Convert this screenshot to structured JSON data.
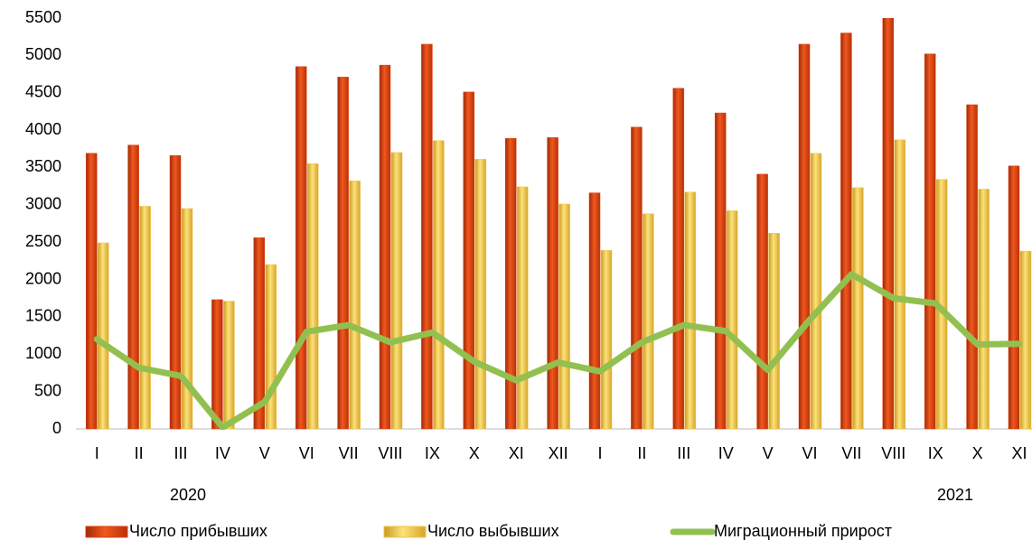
{
  "chart_data": {
    "type": "bar-line",
    "categories": [
      "I",
      "II",
      "III",
      "IV",
      "V",
      "VI",
      "VII",
      "VIII",
      "IX",
      "X",
      "XI",
      "XII",
      "I",
      "II",
      "III",
      "IV",
      "V",
      "VI",
      "VII",
      "VIII",
      "IX",
      "X",
      "XI"
    ],
    "year_labels": [
      "2020",
      "2021"
    ],
    "series": [
      {
        "name": "Число прибывших",
        "type": "bar",
        "color": "#e0400f",
        "values": [
          3690,
          3800,
          3660,
          1730,
          2560,
          4850,
          4710,
          4870,
          5150,
          4510,
          3890,
          3900,
          3160,
          4040,
          4560,
          4230,
          3410,
          5150,
          5300,
          5620,
          5020,
          4340,
          3520
        ]
      },
      {
        "name": "Число выбывших",
        "type": "bar",
        "color": "#f2c443",
        "values": [
          2490,
          2980,
          2950,
          1710,
          2200,
          3550,
          3320,
          3700,
          3860,
          3610,
          3240,
          3010,
          2390,
          2880,
          3170,
          2920,
          2620,
          3690,
          3230,
          3870,
          3340,
          3210,
          2380
        ]
      },
      {
        "name": "Миграционный прирост",
        "type": "line",
        "color": "#92c050",
        "values": [
          1200,
          820,
          710,
          20,
          360,
          1300,
          1390,
          1160,
          1290,
          900,
          650,
          890,
          770,
          1160,
          1390,
          1310,
          790,
          1460,
          2070,
          1750,
          1680,
          1130,
          1140
        ]
      }
    ],
    "ylim": [
      0,
      5500
    ],
    "yticks": [
      0,
      500,
      1000,
      1500,
      2000,
      2500,
      3000,
      3500,
      4000,
      4500,
      5000,
      5500
    ],
    "grid": false,
    "legend": "bottom"
  }
}
